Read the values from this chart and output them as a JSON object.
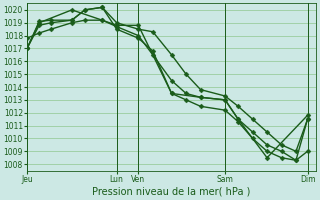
{
  "title": "",
  "xlabel": "Pression niveau de la mer( hPa )",
  "ylabel": "",
  "ylim": [
    1007.5,
    1020.5
  ],
  "yticks": [
    1008,
    1009,
    1010,
    1011,
    1012,
    1013,
    1014,
    1015,
    1016,
    1017,
    1018,
    1019,
    1020
  ],
  "bg_color": "#cce8e4",
  "grid_color": "#90c890",
  "line_color": "#1a5c1a",
  "xtick_labels": [
    "Jeu",
    "Lun",
    "Ven",
    "Sam",
    "Dim"
  ],
  "xtick_positions": [
    0.0,
    0.31,
    0.385,
    0.685,
    0.97
  ],
  "vline_positions": [
    0.0,
    0.31,
    0.385,
    0.685,
    0.97
  ],
  "xlim": [
    0.0,
    1.0
  ],
  "series1_x": [
    0.0,
    0.042,
    0.083,
    0.155,
    0.2,
    0.26,
    0.31,
    0.385,
    0.435,
    0.5,
    0.55,
    0.6,
    0.685,
    0.73,
    0.78,
    0.83,
    0.88,
    0.93,
    0.97
  ],
  "series1_y": [
    1017.0,
    1019.1,
    1019.2,
    1019.2,
    1020.0,
    1020.2,
    1019.0,
    1018.5,
    1018.3,
    1016.5,
    1015.0,
    1013.8,
    1013.3,
    1012.5,
    1011.5,
    1010.5,
    1009.5,
    1009.0,
    1011.5
  ],
  "series2_x": [
    0.0,
    0.042,
    0.083,
    0.155,
    0.2,
    0.26,
    0.31,
    0.385,
    0.435,
    0.5,
    0.55,
    0.6,
    0.685,
    0.73,
    0.78,
    0.83,
    0.88,
    0.93,
    0.97
  ],
  "series2_y": [
    1017.8,
    1018.2,
    1018.5,
    1019.0,
    1019.2,
    1019.2,
    1018.7,
    1018.0,
    1016.5,
    1014.5,
    1013.5,
    1013.2,
    1013.0,
    1011.5,
    1010.5,
    1009.5,
    1009.0,
    1008.3,
    1011.5
  ],
  "series3_x": [
    0.0,
    0.042,
    0.083,
    0.155,
    0.2,
    0.26,
    0.31,
    0.385,
    0.435,
    0.5,
    0.55,
    0.6,
    0.685,
    0.73,
    0.78,
    0.83,
    0.88,
    0.93,
    0.97
  ],
  "series3_y": [
    1017.0,
    1018.8,
    1019.0,
    1019.2,
    1020.0,
    1020.2,
    1018.5,
    1017.8,
    1016.8,
    1013.5,
    1013.0,
    1012.5,
    1012.2,
    1011.3,
    1010.0,
    1009.0,
    1008.5,
    1008.3,
    1009.0
  ],
  "series4_x": [
    0.0,
    0.042,
    0.155,
    0.26,
    0.31,
    0.385,
    0.5,
    0.6,
    0.685,
    0.73,
    0.83,
    0.97
  ],
  "series4_y": [
    1017.0,
    1019.0,
    1020.0,
    1019.2,
    1018.8,
    1018.8,
    1013.5,
    1013.2,
    1013.0,
    1011.5,
    1008.5,
    1011.8
  ],
  "marker": "D",
  "markersize": 2.5,
  "linewidth": 1.0
}
